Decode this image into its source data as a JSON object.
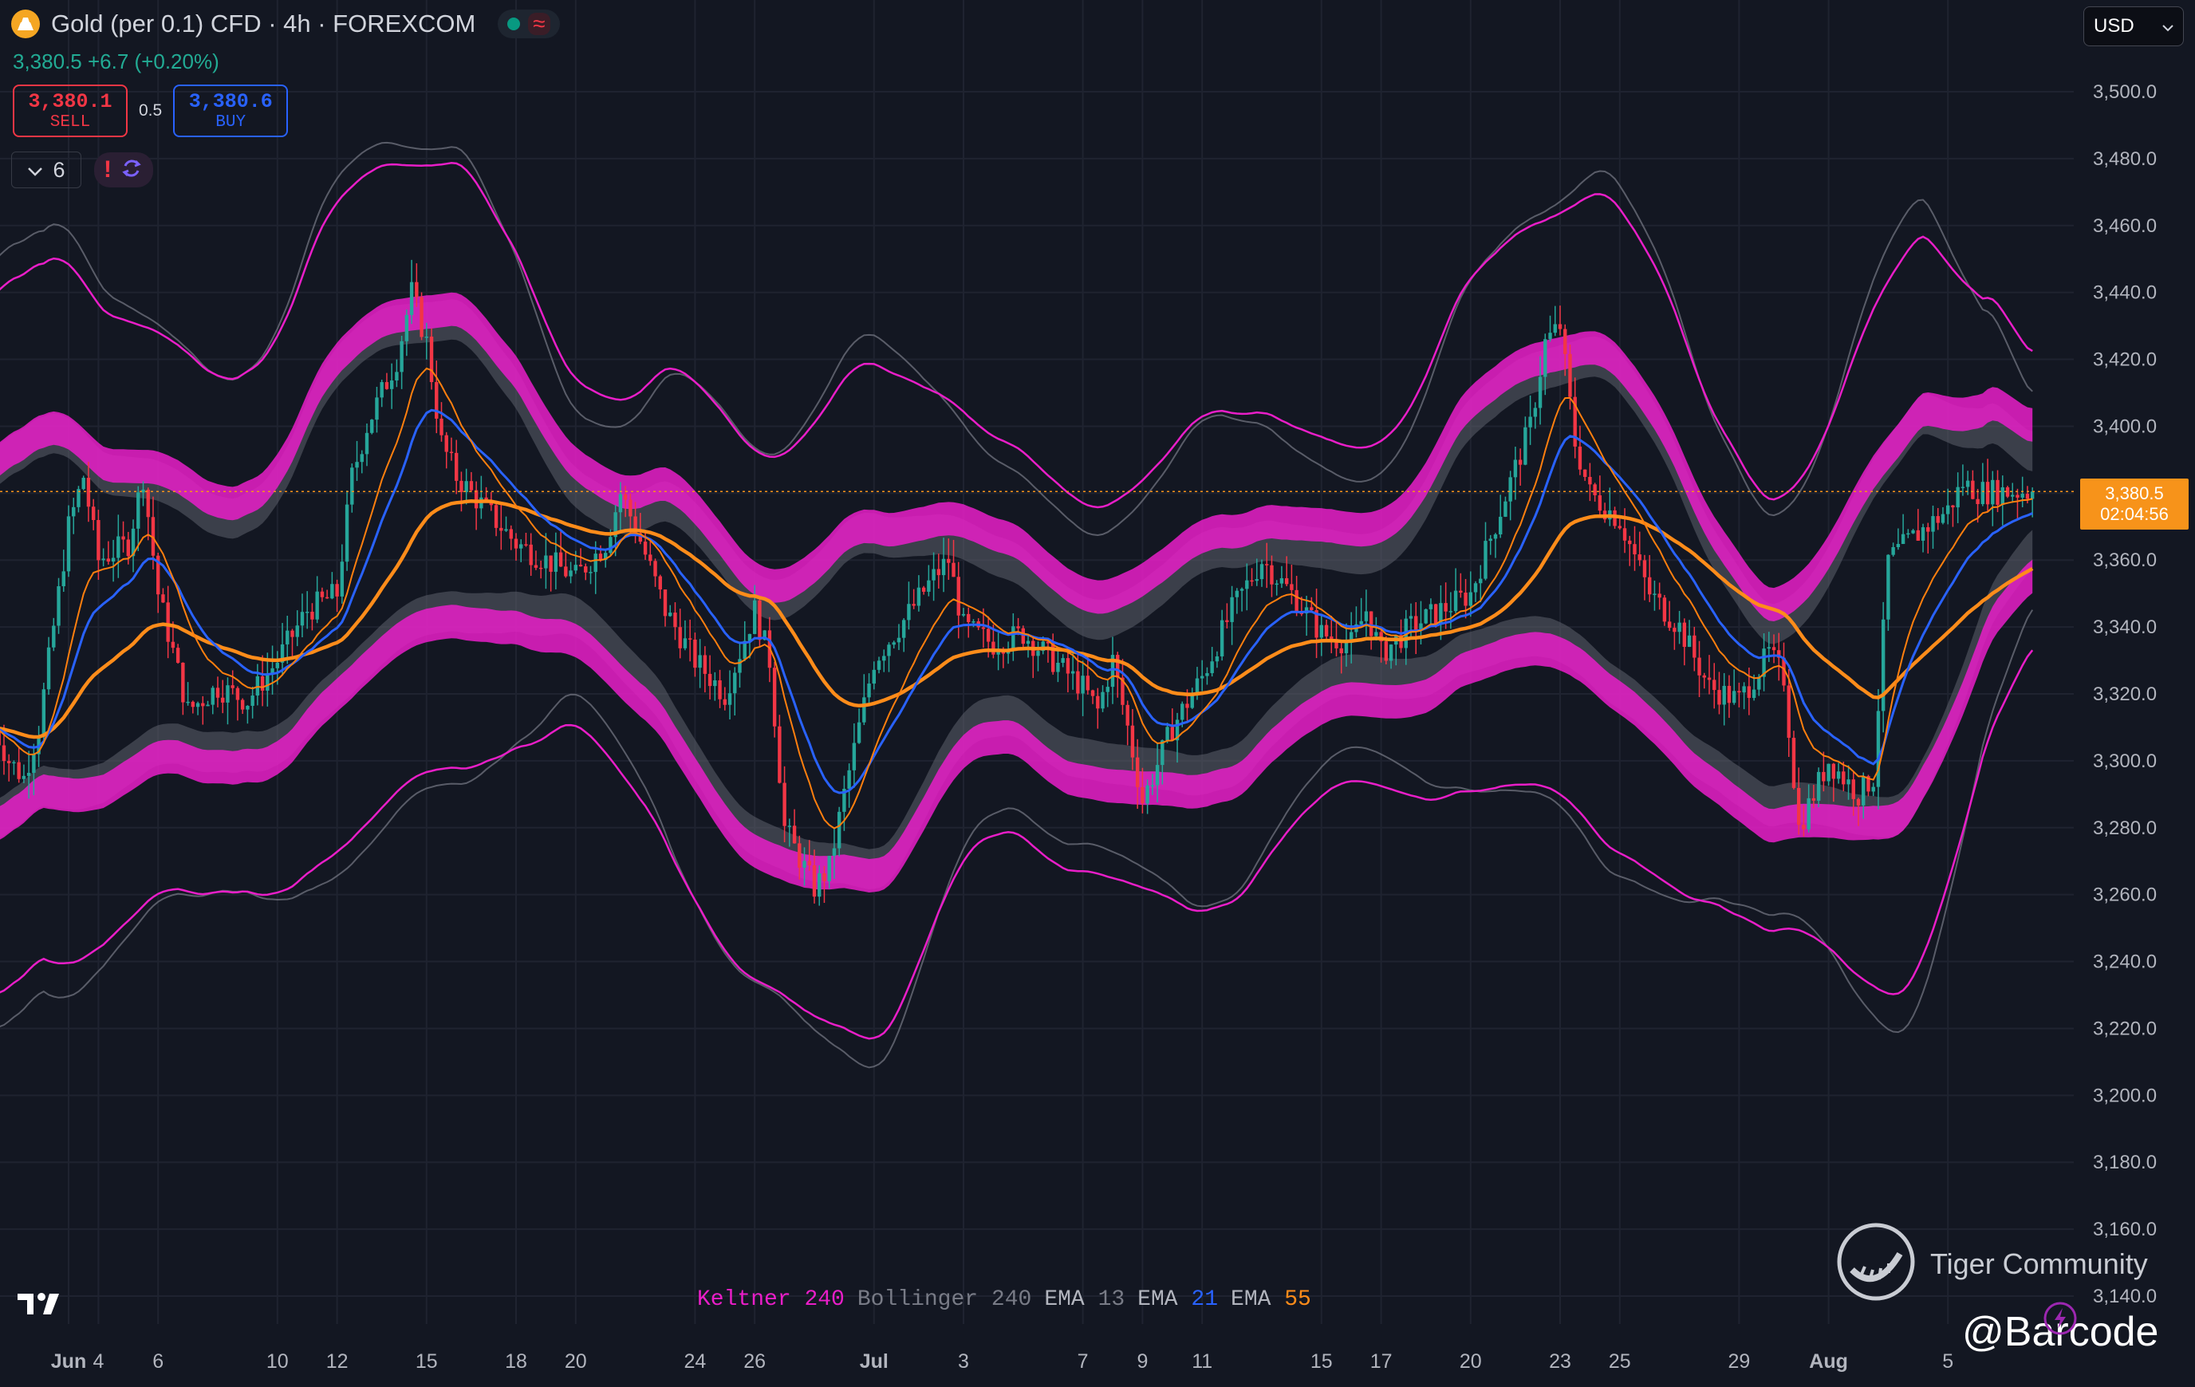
{
  "header": {
    "symbol_title": "Gold (per 0.1) CFD · 4h · FOREXCOM",
    "price_line": "3,380.5  +6.7 (+0.20%)",
    "sell_price": "3,380.1",
    "sell_label": "SELL",
    "spread": "0.5",
    "buy_price": "3,380.6",
    "buy_label": "BUY",
    "indicator_count": "6",
    "currency": "USD"
  },
  "last_price": {
    "price": "3,380.5",
    "countdown": "02:04:56"
  },
  "legend": {
    "keltner_name": "Keltner",
    "keltner_len": "240",
    "bollinger_name": "Bollinger",
    "bollinger_len": "240",
    "ema1_name": "EMA",
    "ema1_len": "13",
    "ema2_name": "EMA",
    "ema2_len": "21",
    "ema3_name": "EMA",
    "ema3_len": "55"
  },
  "watermark": {
    "brand": "Tiger Community",
    "author": "@Barcode"
  },
  "colors": {
    "background": "#131722",
    "up": "#26a69a",
    "down": "#f23645",
    "keltner": "#e91ec8",
    "bollinger": "#9598a1",
    "ema13": "#ff7f0e",
    "ema21": "#2962ff",
    "ema55": "#ff8c1a",
    "last_price": "#f7931a"
  },
  "icons": [
    "gold-coin-icon",
    "status-dot-icon",
    "wave-icon",
    "chevron-down-icon",
    "alert-icon",
    "refresh-icon",
    "tradingview-logo-icon",
    "tiger-logo-icon",
    "lightning-icon"
  ],
  "chart_data": {
    "type": "candlestick",
    "title": "Gold (per 0.1) CFD · 4h · FOREXCOM",
    "y_ticks": [
      3140,
      3160,
      3180,
      3200,
      3220,
      3240,
      3260,
      3280,
      3300,
      3320,
      3340,
      3360,
      3380,
      3400,
      3420,
      3440,
      3460,
      3480,
      3500
    ],
    "y_tick_labels": [
      "3,140.0",
      "3,160.0",
      "3,180.0",
      "3,200.0",
      "3,220.0",
      "3,240.0",
      "3,260.0",
      "3,280.0",
      "3,300.0",
      "3,320.0",
      "3,340.0",
      "3,360.0",
      "3,380.0",
      "3,400.0",
      "3,420.0",
      "3,440.0",
      "3,460.0",
      "3,480.0",
      "3,500.0"
    ],
    "ylim": [
      3131,
      3507
    ],
    "x_ticks": [
      {
        "label": "Jun",
        "day": 3,
        "bold": true
      },
      {
        "label": "4",
        "day": 4
      },
      {
        "label": "6",
        "day": 6
      },
      {
        "label": "10",
        "day": 10
      },
      {
        "label": "12",
        "day": 12
      },
      {
        "label": "15",
        "day": 15
      },
      {
        "label": "18",
        "day": 18
      },
      {
        "label": "20",
        "day": 20
      },
      {
        "label": "24",
        "day": 24
      },
      {
        "label": "26",
        "day": 26
      },
      {
        "label": "Jul",
        "day": 30,
        "bold": true
      },
      {
        "label": "3",
        "day": 33
      },
      {
        "label": "7",
        "day": 37
      },
      {
        "label": "9",
        "day": 39
      },
      {
        "label": "11",
        "day": 41
      },
      {
        "label": "15",
        "day": 45
      },
      {
        "label": "17",
        "day": 47
      },
      {
        "label": "20",
        "day": 50
      },
      {
        "label": "23",
        "day": 53
      },
      {
        "label": "25",
        "day": 55
      },
      {
        "label": "29",
        "day": 59
      },
      {
        "label": "Aug",
        "day": 62,
        "bold": true
      },
      {
        "label": "5",
        "day": 66
      }
    ],
    "close_path": [
      [
        0.0,
        3320
      ],
      [
        1.0,
        3300
      ],
      [
        1.5,
        3295
      ],
      [
        2.0,
        3310
      ],
      [
        3.0,
        3370
      ],
      [
        3.5,
        3385
      ],
      [
        4.0,
        3360
      ],
      [
        5.0,
        3365
      ],
      [
        5.5,
        3385
      ],
      [
        6.0,
        3350
      ],
      [
        7.0,
        3315
      ],
      [
        8.0,
        3322
      ],
      [
        9.0,
        3318
      ],
      [
        10.0,
        3330
      ],
      [
        11.0,
        3345
      ],
      [
        12.0,
        3350
      ],
      [
        12.5,
        3385
      ],
      [
        13.0,
        3400
      ],
      [
        14.0,
        3420
      ],
      [
        14.5,
        3440
      ],
      [
        15.0,
        3425
      ],
      [
        15.5,
        3395
      ],
      [
        16.0,
        3385
      ],
      [
        17.0,
        3375
      ],
      [
        18.0,
        3365
      ],
      [
        19.0,
        3360
      ],
      [
        20.0,
        3355
      ],
      [
        21.0,
        3365
      ],
      [
        21.5,
        3380
      ],
      [
        22.0,
        3370
      ],
      [
        23.0,
        3345
      ],
      [
        24.0,
        3330
      ],
      [
        25.0,
        3320
      ],
      [
        26.0,
        3345
      ],
      [
        26.5,
        3330
      ],
      [
        27.0,
        3280
      ],
      [
        28.0,
        3262
      ],
      [
        28.5,
        3268
      ],
      [
        29.0,
        3290
      ],
      [
        30.0,
        3330
      ],
      [
        31.0,
        3342
      ],
      [
        32.0,
        3355
      ],
      [
        32.5,
        3360
      ],
      [
        33.0,
        3340
      ],
      [
        34.0,
        3335
      ],
      [
        35.0,
        3338
      ],
      [
        36.0,
        3330
      ],
      [
        37.0,
        3322
      ],
      [
        37.5,
        3315
      ],
      [
        38.0,
        3330
      ],
      [
        38.5,
        3310
      ],
      [
        39.0,
        3288
      ],
      [
        40.0,
        3310
      ],
      [
        41.0,
        3325
      ],
      [
        42.0,
        3345
      ],
      [
        43.0,
        3360
      ],
      [
        44.0,
        3350
      ],
      [
        45.0,
        3338
      ],
      [
        46.0,
        3335
      ],
      [
        46.5,
        3345
      ],
      [
        47.0,
        3332
      ],
      [
        48.0,
        3340
      ],
      [
        49.0,
        3345
      ],
      [
        50.0,
        3350
      ],
      [
        51.0,
        3375
      ],
      [
        52.0,
        3400
      ],
      [
        52.5,
        3425
      ],
      [
        53.0,
        3430
      ],
      [
        53.5,
        3395
      ],
      [
        54.0,
        3380
      ],
      [
        55.0,
        3372
      ],
      [
        56.0,
        3350
      ],
      [
        57.0,
        3340
      ],
      [
        58.0,
        3322
      ],
      [
        59.0,
        3318
      ],
      [
        60.0,
        3332
      ],
      [
        60.5,
        3325
      ],
      [
        61.0,
        3280
      ],
      [
        62.0,
        3300
      ],
      [
        63.0,
        3290
      ],
      [
        63.5,
        3295
      ],
      [
        64.0,
        3360
      ],
      [
        65.0,
        3368
      ],
      [
        66.0,
        3375
      ],
      [
        66.5,
        3383
      ],
      [
        67.0,
        3380.5
      ]
    ],
    "series": [
      {
        "name": "Keltner 240",
        "kind": "band",
        "color": "#e91ec8"
      },
      {
        "name": "Bollinger 240",
        "kind": "band",
        "color": "#9598a1"
      },
      {
        "name": "EMA 13",
        "kind": "line",
        "color": "#ff7f0e"
      },
      {
        "name": "EMA 21",
        "kind": "line",
        "color": "#2962ff"
      },
      {
        "name": "EMA 55",
        "kind": "line",
        "color": "#ff8c1a"
      }
    ],
    "last_price": 3380.5,
    "grid": true,
    "legend_position": "bottom-center"
  }
}
